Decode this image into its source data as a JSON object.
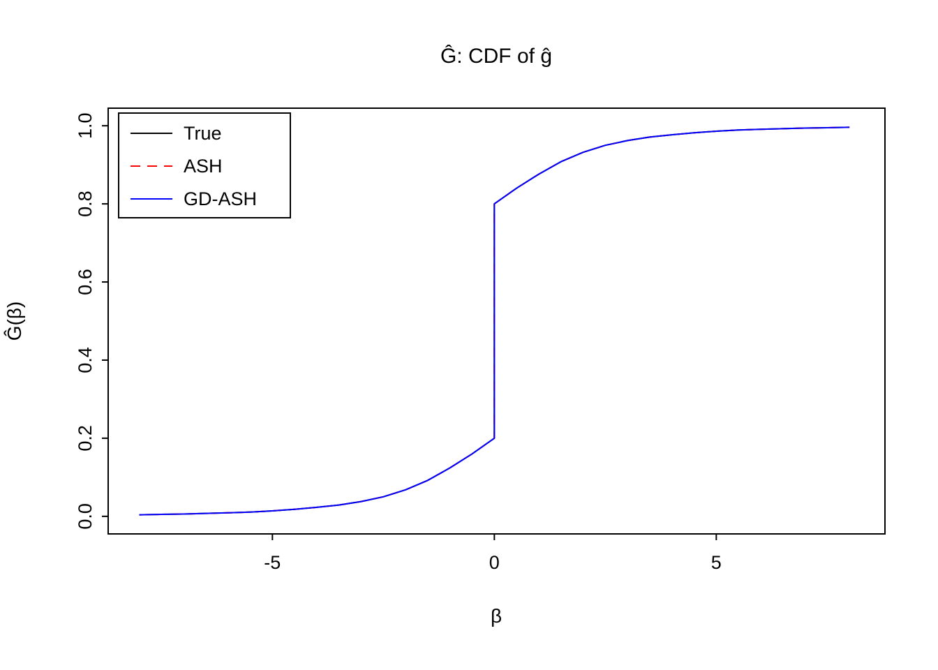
{
  "title": "Ĝ: CDF of ĝ",
  "chart_data": {
    "type": "line",
    "title": "Ĝ: CDF of ĝ",
    "xlabel": "β",
    "ylabel": "Ĝ(β)",
    "x_range": [
      -8.7,
      8.8
    ],
    "y_range": [
      -0.045,
      1.045
    ],
    "x_ticks": [
      -5,
      0,
      5
    ],
    "x_tick_labels": [
      "-5",
      "0",
      "5"
    ],
    "y_ticks": [
      0.0,
      0.2,
      0.4,
      0.6,
      0.8,
      1.0
    ],
    "y_tick_labels": [
      "0.0",
      "0.2",
      "0.4",
      "0.6",
      "0.8",
      "1.0"
    ],
    "grid": false,
    "legend_position": "top-left",
    "note": "All three CDF curves coincide: mixture with point mass 0.6 at beta=0 (jump from 0.2 to 0.8) plus smooth symmetric component",
    "x": [
      -8,
      -7.5,
      -7,
      -6.5,
      -6,
      -5.5,
      -5,
      -4.5,
      -4,
      -3.5,
      -3,
      -2.5,
      -2,
      -1.5,
      -1,
      -0.5,
      0,
      0,
      0.5,
      1,
      1.5,
      2,
      2.5,
      3,
      3.5,
      4,
      4.5,
      5,
      5.5,
      6,
      6.5,
      7,
      7.5,
      8
    ],
    "series": [
      {
        "name": "True",
        "color": "#000000",
        "dash": "solid",
        "y": [
          0.004,
          0.005,
          0.006,
          0.0075,
          0.009,
          0.011,
          0.014,
          0.018,
          0.023,
          0.029,
          0.038,
          0.05,
          0.068,
          0.092,
          0.124,
          0.16,
          0.2,
          0.8,
          0.84,
          0.876,
          0.908,
          0.932,
          0.95,
          0.962,
          0.971,
          0.977,
          0.982,
          0.986,
          0.989,
          0.991,
          0.9925,
          0.994,
          0.995,
          0.996
        ]
      },
      {
        "name": "ASH",
        "color": "#FF0000",
        "dash": "dashed",
        "y": [
          0.004,
          0.005,
          0.006,
          0.0075,
          0.009,
          0.011,
          0.014,
          0.018,
          0.023,
          0.029,
          0.038,
          0.05,
          0.068,
          0.092,
          0.124,
          0.16,
          0.2,
          0.8,
          0.84,
          0.876,
          0.908,
          0.932,
          0.95,
          0.962,
          0.971,
          0.977,
          0.982,
          0.986,
          0.989,
          0.991,
          0.9925,
          0.994,
          0.995,
          0.996
        ]
      },
      {
        "name": "GD-ASH",
        "color": "#0000FF",
        "dash": "solid",
        "y": [
          0.004,
          0.005,
          0.006,
          0.0075,
          0.009,
          0.011,
          0.014,
          0.018,
          0.023,
          0.029,
          0.038,
          0.05,
          0.068,
          0.092,
          0.124,
          0.16,
          0.2,
          0.8,
          0.84,
          0.876,
          0.908,
          0.932,
          0.95,
          0.962,
          0.971,
          0.977,
          0.982,
          0.986,
          0.989,
          0.991,
          0.9925,
          0.994,
          0.995,
          0.996
        ]
      }
    ]
  }
}
